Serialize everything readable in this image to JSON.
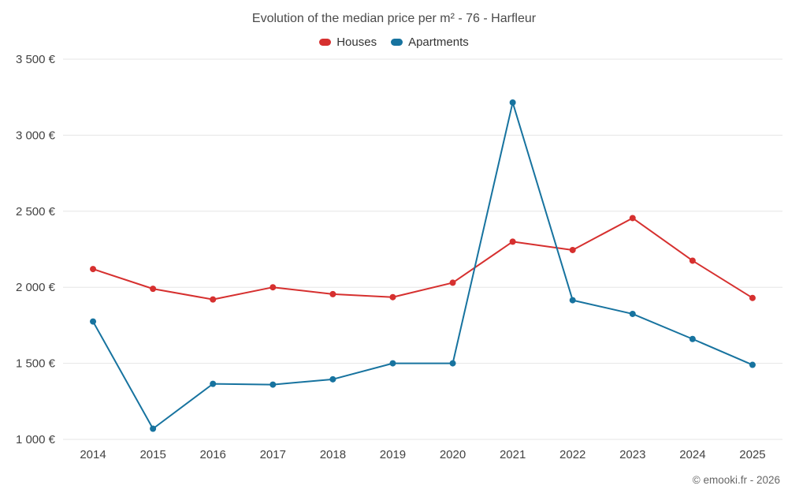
{
  "chart_data": {
    "type": "line",
    "title": "Evolution of the median price per m² - 76 - Harfleur",
    "categories": [
      "2014",
      "2015",
      "2016",
      "2017",
      "2018",
      "2019",
      "2020",
      "2021",
      "2022",
      "2023",
      "2024",
      "2025"
    ],
    "series": [
      {
        "name": "Houses",
        "color": "#d6302f",
        "values": [
          2120,
          1990,
          1920,
          2000,
          1955,
          1935,
          2030,
          2300,
          2245,
          2455,
          2175,
          1930
        ]
      },
      {
        "name": "Apartments",
        "color": "#17739f",
        "values": [
          1775,
          1070,
          1365,
          1360,
          1395,
          1500,
          1500,
          3215,
          1915,
          1825,
          1660,
          1490
        ]
      }
    ],
    "xlabel": "",
    "ylabel": "",
    "ylim": [
      1000,
      3500
    ],
    "ytick_step": 500,
    "yaxis_suffix": "€",
    "grid": "horizontal",
    "legend_position": "top",
    "gridline_color": "#e6e6e6"
  },
  "footer": {
    "copyright": "© emooki.fr - 2026"
  }
}
